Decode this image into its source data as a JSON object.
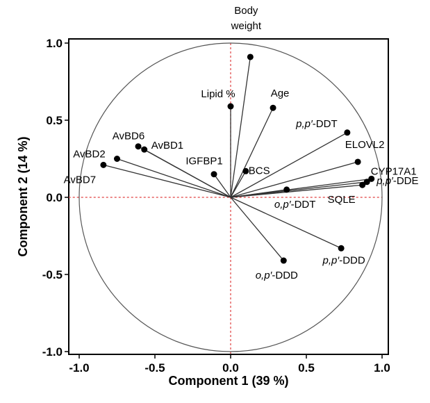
{
  "chart_data": {
    "type": "scatter",
    "subtype": "pca-loading-plot",
    "xlabel": "Component 1  (39 %)",
    "ylabel": "Component 2  (14 %)",
    "xlim": [
      -1.07,
      1.0
    ],
    "ylim": [
      -1.02,
      1.0
    ],
    "xticks": [
      "-1.0",
      "-0.5",
      "0.0",
      "0.5",
      "1.0"
    ],
    "yticks": [
      "1.0",
      "0.5",
      "0.0",
      "-0.5",
      "-1.0"
    ],
    "unit_circle": true,
    "reference_lines": {
      "x": 0,
      "y": 0,
      "style": "dashed",
      "color": "#e04040"
    },
    "grid": false,
    "series": [
      {
        "points": [
          {
            "label": [
              "Body",
              "weight"
            ],
            "x": 0.13,
            "y": 0.91
          },
          {
            "label": "Lipid %",
            "x": 0.0,
            "y": 0.59
          },
          {
            "label": "Age",
            "x": 0.28,
            "y": 0.58
          },
          {
            "label": "p,p′-DDT",
            "x": 0.77,
            "y": 0.42
          },
          {
            "label": "ELOVL2",
            "x": 0.84,
            "y": 0.23
          },
          {
            "label": "CYP17A1",
            "x": 0.93,
            "y": 0.12
          },
          {
            "label": "p,p′-DDE",
            "x": 0.9,
            "y": 0.1
          },
          {
            "label": "SQLE",
            "x": 0.87,
            "y": 0.08
          },
          {
            "label": "o,p′-DDT",
            "x": 0.37,
            "y": 0.05
          },
          {
            "label": "BCS",
            "x": 0.1,
            "y": 0.17
          },
          {
            "label": "IGFBP1",
            "x": -0.11,
            "y": 0.15
          },
          {
            "label": "AvBD6",
            "x": -0.61,
            "y": 0.33
          },
          {
            "label": "AvBD1",
            "x": -0.57,
            "y": 0.31
          },
          {
            "label": "AvBD2",
            "x": -0.75,
            "y": 0.25
          },
          {
            "label": "AvBD7",
            "x": -0.84,
            "y": 0.21
          },
          {
            "label": "p,p′-DDD",
            "x": 0.73,
            "y": -0.33
          },
          {
            "label": "o,p′-DDD",
            "x": 0.35,
            "y": -0.41
          }
        ]
      }
    ]
  }
}
